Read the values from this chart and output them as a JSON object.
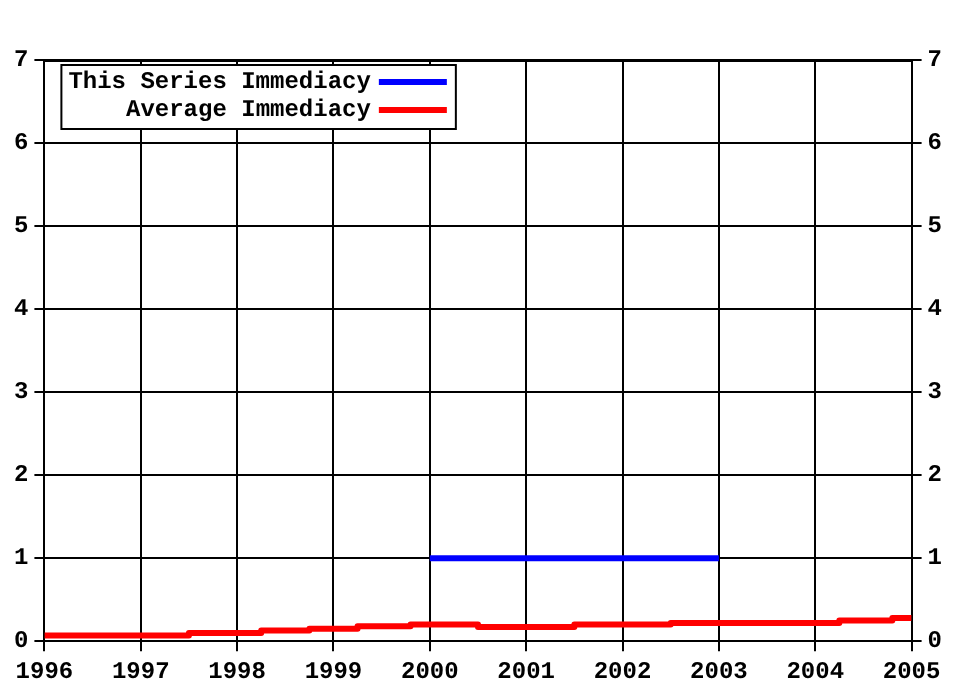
{
  "chart_data": {
    "type": "line",
    "xlim": [
      1996,
      2005
    ],
    "xticks": [
      1996,
      1997,
      1998,
      1999,
      2000,
      2001,
      2002,
      2003,
      2004,
      2005
    ],
    "ylim": [
      0,
      7
    ],
    "yticks": [
      0,
      1,
      2,
      3,
      4,
      5,
      6,
      7
    ],
    "y2lim": [
      0,
      7
    ],
    "y2ticks": [
      0,
      1,
      2,
      3,
      4,
      5,
      6,
      7
    ],
    "grid": true,
    "legend": "top left",
    "line_style": "solid",
    "marker": "none",
    "series": [
      {
        "name": "This Series Immediacy",
        "color": "#0000ff",
        "x": [
          2000,
          2003
        ],
        "values": [
          1,
          1
        ]
      },
      {
        "name": "Average Immediacy",
        "color": "#ff0000",
        "type": "step",
        "x": [
          1996,
          1997.5,
          1998.25,
          1998.75,
          1999.25,
          1999.8,
          2000.5,
          2001.5,
          2002.5,
          2004.25,
          2004.8,
          2005
        ],
        "values": [
          0.07,
          0.1,
          0.13,
          0.15,
          0.18,
          0.2,
          0.17,
          0.2,
          0.22,
          0.25,
          0.28,
          0.28
        ]
      }
    ]
  }
}
